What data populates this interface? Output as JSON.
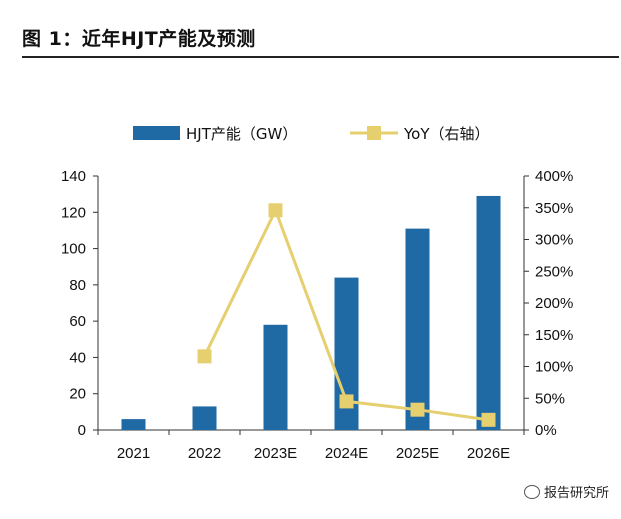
{
  "figure": {
    "title": "图 1：近年HJT产能及预测",
    "watermark": "报告研究所"
  },
  "chart_data": {
    "type": "bar",
    "categories": [
      "2021",
      "2022",
      "2023E",
      "2024E",
      "2025E",
      "2026E"
    ],
    "series": [
      {
        "name": "HJT产能（GW）",
        "type": "bar",
        "axis": "left",
        "color": "#1f6aa5",
        "values": [
          6,
          13,
          58,
          84,
          111,
          129
        ]
      },
      {
        "name": "YoY（右轴）",
        "type": "line",
        "axis": "right",
        "color": "#e6cf6e",
        "values": [
          null,
          1.16,
          3.46,
          0.45,
          0.32,
          0.16
        ]
      }
    ],
    "yleft": {
      "min": 0,
      "max": 140,
      "ticks": [
        0,
        20,
        40,
        60,
        80,
        100,
        120,
        140
      ]
    },
    "yright": {
      "min": 0,
      "max": 4,
      "ticks": [
        0,
        0.5,
        1,
        1.5,
        2,
        2.5,
        3,
        3.5,
        4
      ],
      "tick_labels": [
        "0%",
        "50%",
        "100%",
        "150%",
        "200%",
        "250%",
        "300%",
        "350%",
        "400%"
      ]
    },
    "legend": "top",
    "grid": false
  }
}
